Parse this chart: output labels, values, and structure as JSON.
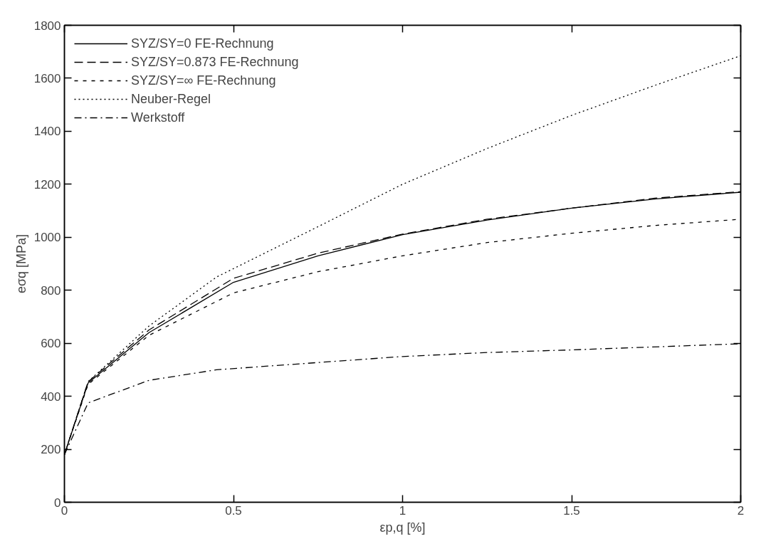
{
  "chart_data": {
    "type": "line",
    "xlabel": "εp,q [%]",
    "ylabel": "eσq [MPa]",
    "xlim": [
      0,
      2
    ],
    "xticks": [
      0,
      0.5,
      1,
      1.5,
      2
    ],
    "ylim": [
      0,
      1800
    ],
    "yticks": [
      0,
      200,
      400,
      600,
      800,
      1000,
      1200,
      1400,
      1600,
      1800
    ],
    "grid": false,
    "legend": "top left",
    "marker": "none",
    "series": [
      {
        "name": "SYZ/SY=0 FE-Rechnung",
        "color": "#000000",
        "line_style": "solid",
        "x": [
          0,
          0.07,
          0.25,
          0.5,
          0.75,
          1,
          1.25,
          1.5,
          1.75,
          2
        ],
        "values": [
          180,
          450,
          640,
          830,
          930,
          1010,
          1065,
          1110,
          1145,
          1170
        ]
      },
      {
        "name": "SYZ/SY=0.873 FE-Rechnung",
        "color": "#000000",
        "line_style": "dashed",
        "x": [
          0,
          0.07,
          0.25,
          0.5,
          0.75,
          1,
          1.25,
          1.5,
          1.75,
          2
        ],
        "values": [
          180,
          455,
          650,
          845,
          940,
          1012,
          1068,
          1110,
          1148,
          1172
        ]
      },
      {
        "name": "SYZ/SY=∞ FE-Rechnung",
        "color": "#000000",
        "line_style": "short-dashed",
        "x": [
          0,
          0.07,
          0.25,
          0.5,
          0.75,
          1,
          1.25,
          1.5,
          1.75,
          2
        ],
        "values": [
          180,
          445,
          630,
          790,
          870,
          930,
          980,
          1015,
          1045,
          1068
        ]
      },
      {
        "name": "Neuber-Regel",
        "color": "#000000",
        "line_style": "dotted",
        "x": [
          0,
          0.07,
          0.25,
          0.45,
          0.75,
          1,
          1.25,
          1.5,
          1.75,
          2
        ],
        "values": [
          180,
          455,
          665,
          850,
          1040,
          1200,
          1335,
          1460,
          1575,
          1685
        ]
      },
      {
        "name": "Werkstoff",
        "color": "#000000",
        "line_style": "dashdot",
        "x": [
          0,
          0.07,
          0.25,
          0.45,
          1,
          1.25,
          1.5,
          2
        ],
        "values": [
          180,
          375,
          460,
          500,
          550,
          565,
          575,
          598
        ]
      }
    ]
  }
}
